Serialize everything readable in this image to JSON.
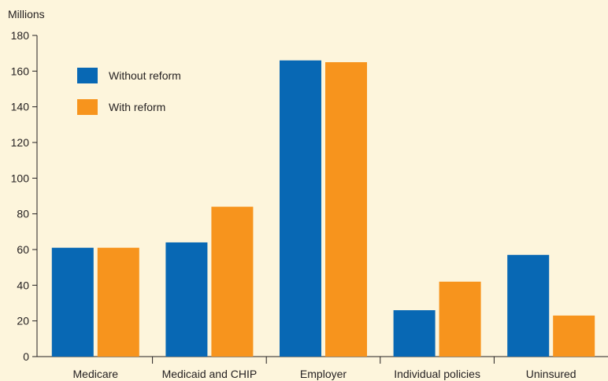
{
  "chart_data": {
    "type": "bar",
    "ylabel": "Millions",
    "ylim": [
      0,
      180
    ],
    "yticks": [
      0,
      20,
      40,
      60,
      80,
      100,
      120,
      140,
      160,
      180
    ],
    "categories": [
      "Medicare",
      "Medicaid and CHIP",
      "Employer",
      "Individual policies",
      "Uninsured"
    ],
    "series": [
      {
        "name": "Without reform",
        "color": "#0868b4",
        "values": [
          61,
          64,
          166,
          26,
          57
        ]
      },
      {
        "name": "With reform",
        "color": "#f7941d",
        "values": [
          61,
          84,
          165,
          42,
          23
        ]
      }
    ],
    "legend": "top-left",
    "grid": false
  }
}
